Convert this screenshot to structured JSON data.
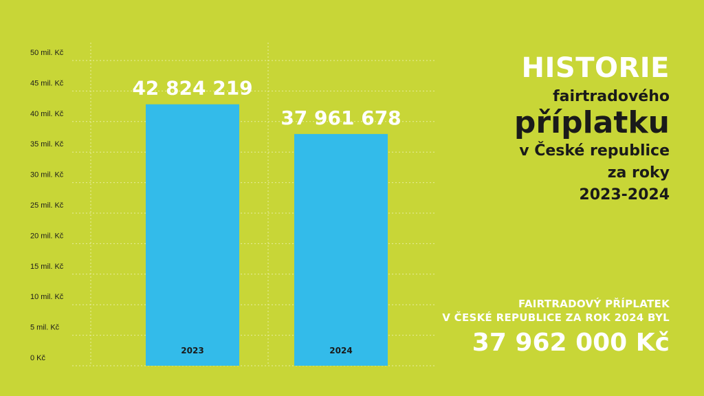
{
  "colors": {
    "background": "#c8d637",
    "bar": "#33bbea",
    "grid": "#e8eda0",
    "white": "#ffffff",
    "dark": "#1a1a1a"
  },
  "chart_data": {
    "type": "bar",
    "categories": [
      "2023",
      "2024"
    ],
    "values": [
      42824219,
      37961678
    ],
    "value_labels": [
      "42 824 219",
      "37 961 678"
    ],
    "yticks": [
      0,
      5000000,
      10000000,
      15000000,
      20000000,
      25000000,
      30000000,
      35000000,
      40000000,
      45000000,
      50000000
    ],
    "ytick_labels": [
      "0 Kč",
      "5 mil. Kč",
      "10 mil. Kč",
      "15 mil. Kč",
      "20 mil. Kč",
      "25 mil. Kč",
      "30 mil. Kč",
      "35 mil. Kč",
      "40 mil. Kč",
      "45 mil. Kč",
      "50 mil. Kč"
    ],
    "ylim": [
      0,
      50000000
    ],
    "grid": true
  },
  "title": {
    "line1": "HISTORIE",
    "line2": "fairtradového",
    "line3": "příplatku",
    "line4": "v České republice",
    "line5": "za roky",
    "line6": "2023-2024"
  },
  "summary": {
    "line1": "FAIRTRADOVÝ PŘÍPLATEK",
    "line2": "V ČESKÉ REPUBLICE ZA ROK 2024 BYL",
    "amount": "37 962 000 Kč"
  }
}
